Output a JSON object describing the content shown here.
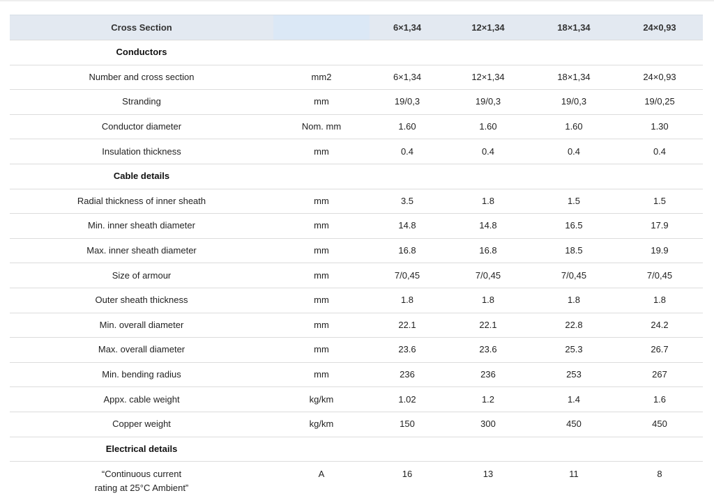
{
  "table": {
    "header": {
      "label": "Cross Section",
      "columns": [
        "6×1,34",
        "12×1,34",
        "18×1,34",
        "24×0,93"
      ]
    },
    "rows": [
      {
        "section": "Conductors"
      },
      {
        "cells": [
          "Number and cross section",
          "mm2",
          "6×1,34",
          "12×1,34",
          "18×1,34",
          "24×0,93"
        ]
      },
      {
        "cells": [
          "Stranding",
          "mm",
          "19/0,3",
          "19/0,3",
          "19/0,3",
          "19/0,25"
        ]
      },
      {
        "cells": [
          "Conductor diameter",
          "Nom. mm",
          "1.60",
          "1.60",
          "1.60",
          "1.30"
        ]
      },
      {
        "cells": [
          "Insulation thickness",
          "mm",
          "0.4",
          "0.4",
          "0.4",
          "0.4"
        ]
      },
      {
        "section": "Cable details"
      },
      {
        "cells": [
          "Radial thickness of inner sheath",
          "mm",
          "3.5",
          "1.8",
          "1.5",
          "1.5"
        ]
      },
      {
        "cells": [
          "Min. inner sheath diameter",
          "mm",
          "14.8",
          "14.8",
          "16.5",
          "17.9"
        ]
      },
      {
        "cells": [
          "Max. inner sheath diameter",
          "mm",
          "16.8",
          "16.8",
          "18.5",
          "19.9"
        ]
      },
      {
        "cells": [
          "Size of armour",
          "mm",
          "7/0,45",
          "7/0,45",
          "7/0,45",
          "7/0,45"
        ]
      },
      {
        "cells": [
          "Outer sheath thickness",
          "mm",
          "1.8",
          "1.8",
          "1.8",
          "1.8"
        ]
      },
      {
        "cells": [
          "Min. overall diameter",
          "mm",
          "22.1",
          "22.1",
          "22.8",
          "24.2"
        ]
      },
      {
        "cells": [
          "Max. overall diameter",
          "mm",
          "23.6",
          "23.6",
          "25.3",
          "26.7"
        ]
      },
      {
        "cells": [
          "Min. bending radius",
          "mm",
          "236",
          "236",
          "253",
          "267"
        ]
      },
      {
        "cells": [
          "Appx. cable weight",
          "kg/km",
          "1.02",
          "1.2",
          "1.4",
          "1.6"
        ]
      },
      {
        "cells": [
          "Copper weight",
          "kg/km",
          "150",
          "300",
          "450",
          "450"
        ]
      },
      {
        "section": "Electrical details"
      },
      {
        "cells": [
          "“Continuous current\nrating at 25°C Ambient”",
          "A",
          "16",
          "13",
          "11",
          "8"
        ]
      }
    ]
  }
}
